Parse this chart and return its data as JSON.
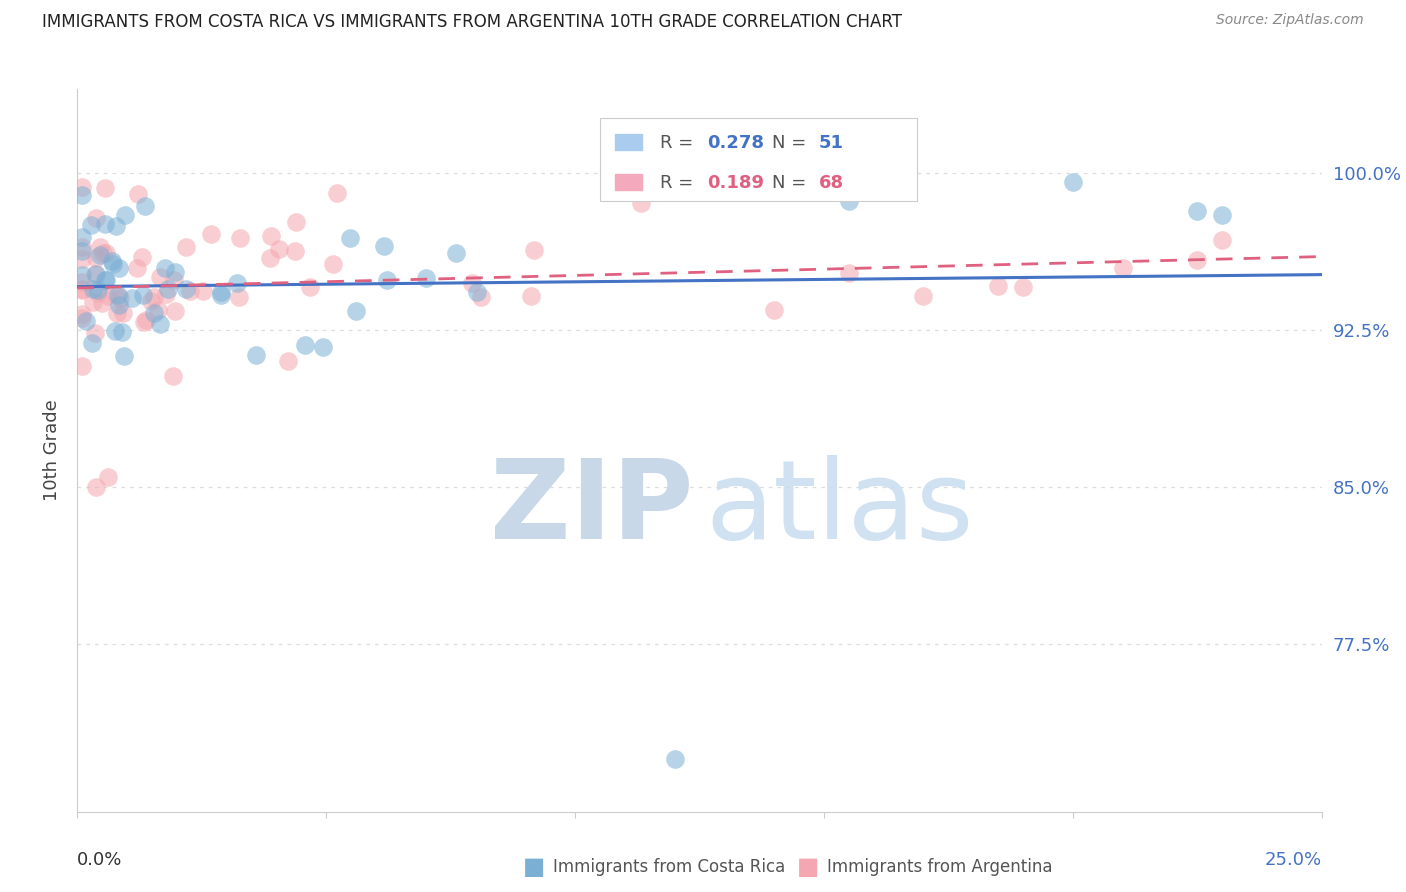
{
  "title": "IMMIGRANTS FROM COSTA RICA VS IMMIGRANTS FROM ARGENTINA 10TH GRADE CORRELATION CHART",
  "source": "Source: ZipAtlas.com",
  "ylabel_label": "10th Grade",
  "yticks": [
    0.775,
    0.85,
    0.925,
    1.0
  ],
  "ytick_labels": [
    "77.5%",
    "85.0%",
    "92.5%",
    "100.0%"
  ],
  "xlim": [
    0.0,
    0.25
  ],
  "ylim": [
    0.695,
    1.04
  ],
  "R_costa_rica": 0.278,
  "N_costa_rica": 51,
  "R_argentina": 0.189,
  "N_argentina": 68,
  "blue_color": "#7BAFD4",
  "pink_color": "#F4A7B0",
  "blue_line_color": "#4472C4",
  "pink_line_color": "#E06080",
  "blue_text_color": "#4472C4",
  "pink_text_color": "#E06080",
  "right_axis_color": "#4472C4",
  "grid_color": "#DDDDDD",
  "title_color": "#222222",
  "source_color": "#888888",
  "label_color": "#444444"
}
